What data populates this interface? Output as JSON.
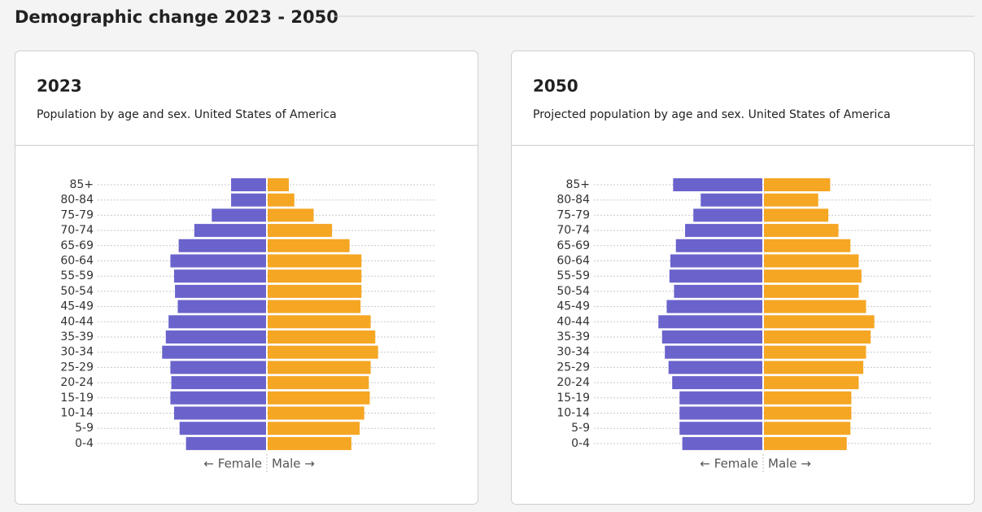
{
  "title": "Demographic change 2023 - 2050",
  "chart_data": [
    {
      "type": "pyramid",
      "title": "2023",
      "subtitle": "Population by age and sex. United States of America",
      "categories": [
        "85+",
        "80-84",
        "75-79",
        "70-74",
        "65-69",
        "60-64",
        "55-59",
        "50-54",
        "45-49",
        "40-44",
        "35-39",
        "30-34",
        "25-29",
        "20-24",
        "15-19",
        "10-14",
        "5-9",
        "0-4"
      ],
      "series": [
        {
          "name": "← Female",
          "color": "#6a63cc",
          "values": [
            3.8,
            3.8,
            5.9,
            7.8,
            9.5,
            10.4,
            10.0,
            9.9,
            9.6,
            10.6,
            10.9,
            11.3,
            10.4,
            10.3,
            10.4,
            10.0,
            9.4,
            8.7
          ]
        },
        {
          "name": "Male →",
          "color": "#f5a623",
          "values": [
            2.3,
            2.9,
            5.0,
            7.0,
            8.9,
            10.2,
            10.2,
            10.2,
            10.1,
            11.2,
            11.7,
            12.0,
            11.2,
            11.0,
            11.1,
            10.5,
            10.0,
            9.1
          ]
        }
      ],
      "xlim": [
        0,
        18.4
      ]
    },
    {
      "type": "pyramid",
      "title": "2050",
      "subtitle": "Projected population by age and sex. United States of America",
      "categories": [
        "85+",
        "80-84",
        "75-79",
        "70-74",
        "65-69",
        "60-64",
        "55-59",
        "50-54",
        "45-49",
        "40-44",
        "35-39",
        "30-34",
        "25-29",
        "20-24",
        "15-19",
        "10-14",
        "5-9",
        "0-4"
      ],
      "series": [
        {
          "name": "← Female",
          "color": "#6a63cc",
          "values": [
            9.7,
            6.7,
            7.5,
            8.4,
            9.4,
            10.0,
            10.1,
            9.6,
            10.4,
            11.3,
            10.9,
            10.6,
            10.2,
            9.8,
            9.0,
            9.0,
            9.0,
            8.7
          ]
        },
        {
          "name": "Male →",
          "color": "#f5a623",
          "values": [
            7.2,
            5.9,
            7.0,
            8.1,
            9.4,
            10.3,
            10.6,
            10.3,
            11.1,
            12.0,
            11.6,
            11.1,
            10.8,
            10.3,
            9.5,
            9.5,
            9.4,
            9.0
          ]
        }
      ],
      "xlim": [
        0,
        18.4
      ]
    }
  ]
}
